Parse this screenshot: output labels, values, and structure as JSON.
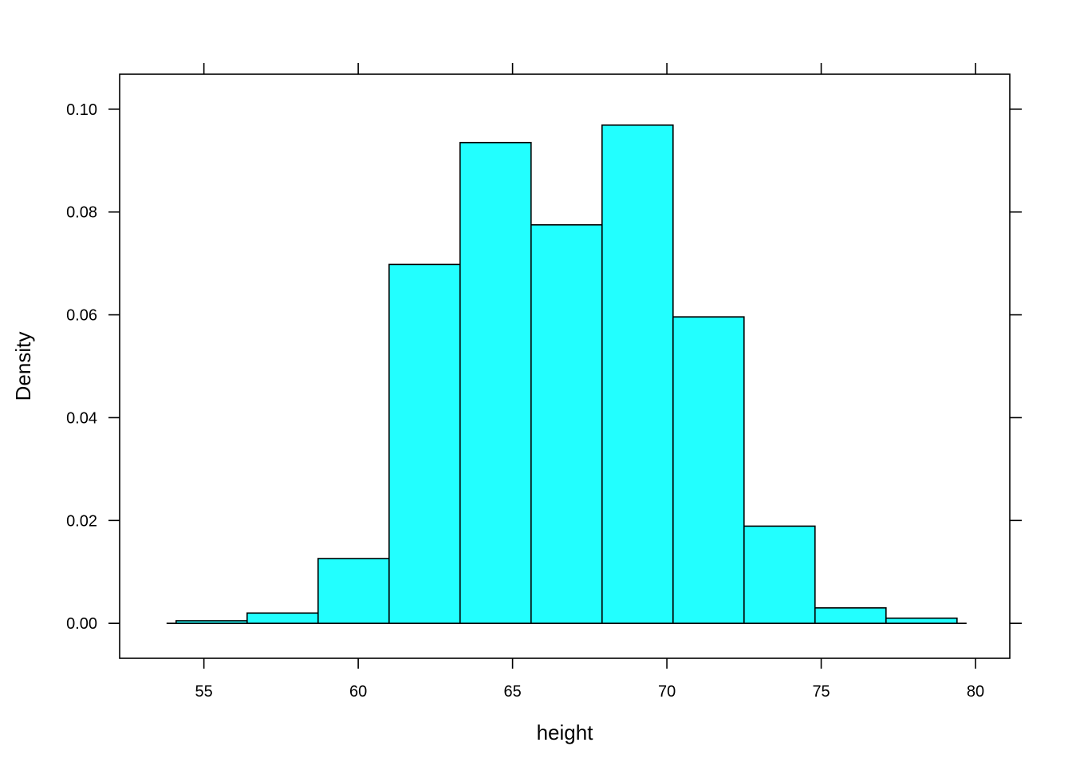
{
  "chart_data": {
    "type": "bar",
    "title": "",
    "xlabel": "height",
    "ylabel": "Density",
    "xlim": [
      52.27,
      81.11
    ],
    "ylim": [
      -0.0068,
      0.1068
    ],
    "x_ticks": [
      55,
      60,
      65,
      70,
      75,
      80
    ],
    "x_tick_labels": [
      "55",
      "60",
      "65",
      "70",
      "75",
      "80"
    ],
    "y_ticks": [
      0.0,
      0.02,
      0.04,
      0.06,
      0.08,
      0.1
    ],
    "y_tick_labels": [
      "0.00",
      "0.02",
      "0.04",
      "0.06",
      "0.08",
      "0.10"
    ],
    "bin_edges": [
      54.1,
      56.4,
      58.7,
      61.0,
      63.3,
      65.6,
      67.9,
      70.2,
      72.5,
      74.8,
      77.1,
      79.4
    ],
    "values": [
      0.0005,
      0.002,
      0.0126,
      0.0698,
      0.0935,
      0.0775,
      0.0969,
      0.0596,
      0.0189,
      0.003,
      0.001
    ],
    "grid": false,
    "colors": {
      "bar_fill": "#22FFFF",
      "bar_stroke": "#000000",
      "axis": "#000000"
    }
  }
}
